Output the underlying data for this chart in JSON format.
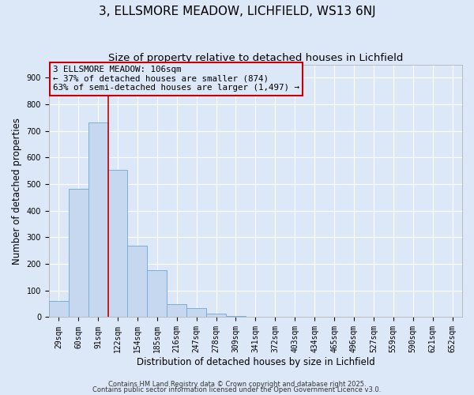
{
  "title": "3, ELLSMORE MEADOW, LICHFIELD, WS13 6NJ",
  "subtitle": "Size of property relative to detached houses in Lichfield",
  "xlabel": "Distribution of detached houses by size in Lichfield",
  "ylabel": "Number of detached properties",
  "bar_values": [
    60,
    484,
    733,
    554,
    270,
    176,
    50,
    33,
    14,
    5,
    0,
    0,
    0,
    0,
    0,
    0,
    0,
    0,
    0,
    0,
    0
  ],
  "bin_labels": [
    "29sqm",
    "60sqm",
    "91sqm",
    "122sqm",
    "154sqm",
    "185sqm",
    "216sqm",
    "247sqm",
    "278sqm",
    "309sqm",
    "341sqm",
    "372sqm",
    "403sqm",
    "434sqm",
    "465sqm",
    "496sqm",
    "527sqm",
    "559sqm",
    "590sqm",
    "621sqm",
    "652sqm"
  ],
  "bar_color": "#c5d8f0",
  "bar_edge_color": "#7aafda",
  "vline_x_index": 2,
  "vline_color": "#cc0000",
  "annotation_line1": "3 ELLSMORE MEADOW: 106sqm",
  "annotation_line2": "← 37% of detached houses are smaller (874)",
  "annotation_line3": "63% of semi-detached houses are larger (1,497) →",
  "annotation_box_color": "#cc0000",
  "ylim": [
    0,
    950
  ],
  "yticks": [
    0,
    100,
    200,
    300,
    400,
    500,
    600,
    700,
    800,
    900
  ],
  "background_color": "#dce8f8",
  "plot_bg_color": "#dce8f8",
  "grid_color": "#ffffff",
  "footer1": "Contains HM Land Registry data © Crown copyright and database right 2025.",
  "footer2": "Contains public sector information licensed under the Open Government Licence v3.0.",
  "title_fontsize": 11,
  "subtitle_fontsize": 9.5,
  "annotation_fontsize": 7.8,
  "xlabel_fontsize": 8.5,
  "ylabel_fontsize": 8.5,
  "tick_fontsize": 7,
  "footer_fontsize": 6
}
